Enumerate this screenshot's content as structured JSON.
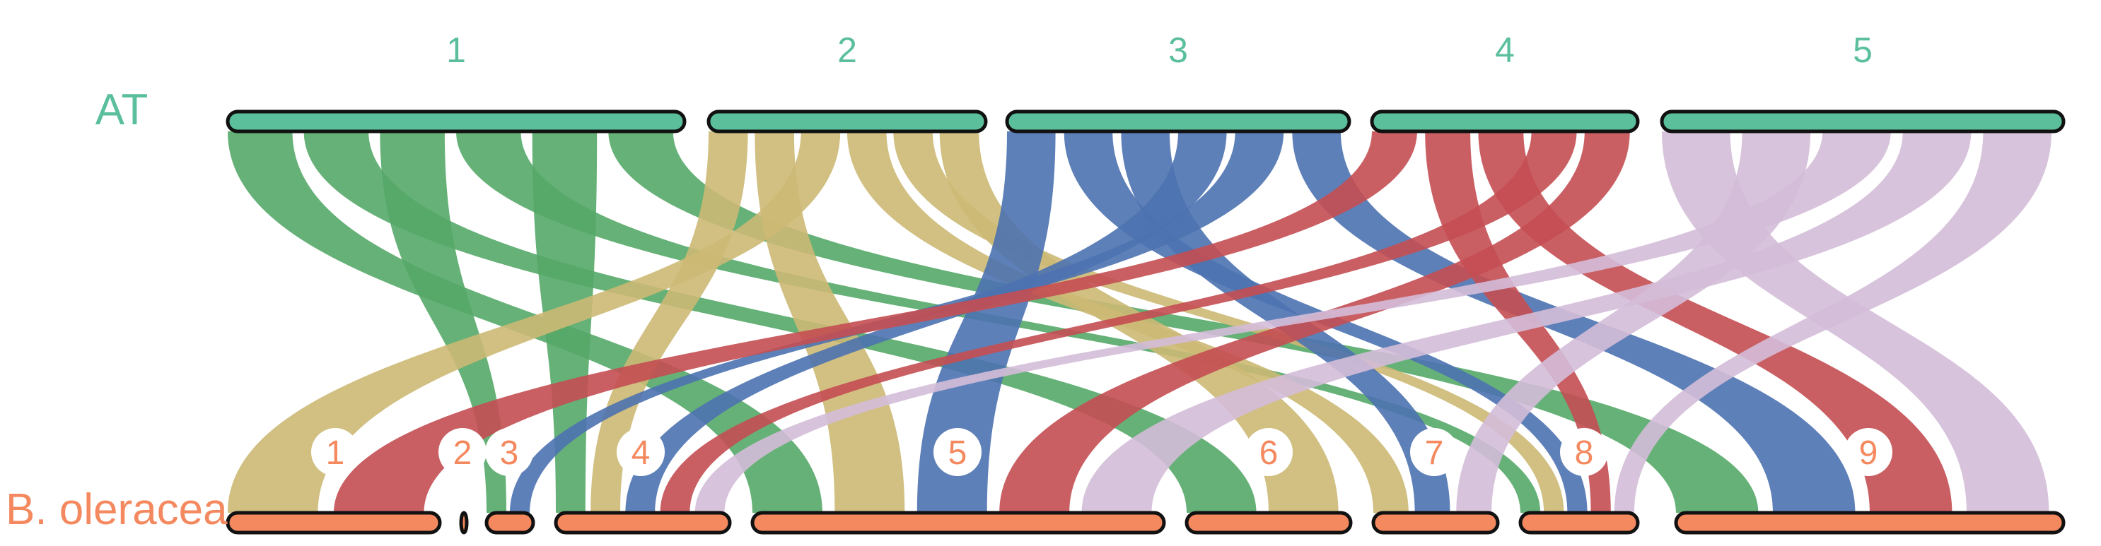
{
  "genomes": [
    {
      "name": "AT",
      "color": "#5bbf9c"
    },
    {
      "name": "B. oleracea",
      "color": "#f4895f"
    }
  ],
  "top_chromosomes": [
    {
      "label": "1",
      "fill": "#5bbf9c"
    },
    {
      "label": "2",
      "fill": "#5bbf9c"
    },
    {
      "label": "3",
      "fill": "#5bbf9c"
    },
    {
      "label": "4",
      "fill": "#5bbf9c"
    },
    {
      "label": "5",
      "fill": "#5bbf9c"
    }
  ],
  "bottom_chromosomes": [
    {
      "label": "1",
      "fill": "#f4895f"
    },
    {
      "label": "2",
      "fill": "#f4895f"
    },
    {
      "label": "3",
      "fill": "#f4895f"
    },
    {
      "label": "4",
      "fill": "#f4895f"
    },
    {
      "label": "5",
      "fill": "#f4895f"
    },
    {
      "label": "6",
      "fill": "#f4895f"
    },
    {
      "label": "7",
      "fill": "#f4895f"
    },
    {
      "label": "8",
      "fill": "#f4895f"
    },
    {
      "label": "9",
      "fill": "#f4895f"
    }
  ],
  "link_colors": {
    "1": "#55a868",
    "2": "#ccb974",
    "3": "#4c72b0",
    "4": "#c44e52",
    "5": "#d4bcd8"
  },
  "links": [
    {
      "from": "1",
      "to": "5",
      "color_key": "1"
    },
    {
      "from": "1",
      "to": "6",
      "color_key": "1"
    },
    {
      "from": "1",
      "to": "3",
      "color_key": "1"
    },
    {
      "from": "1",
      "to": "8",
      "color_key": "1"
    },
    {
      "from": "1",
      "to": "4",
      "color_key": "1"
    },
    {
      "from": "1",
      "to": "9",
      "color_key": "1"
    },
    {
      "from": "2",
      "to": "4",
      "color_key": "2"
    },
    {
      "from": "2",
      "to": "5",
      "color_key": "2"
    },
    {
      "from": "2",
      "to": "1",
      "color_key": "2"
    },
    {
      "from": "2",
      "to": "7",
      "color_key": "2"
    },
    {
      "from": "2",
      "to": "8",
      "color_key": "2"
    },
    {
      "from": "2",
      "to": "6",
      "color_key": "2"
    },
    {
      "from": "3",
      "to": "5",
      "color_key": "3"
    },
    {
      "from": "3",
      "to": "8",
      "color_key": "3"
    },
    {
      "from": "3",
      "to": "7",
      "color_key": "3"
    },
    {
      "from": "3",
      "to": "4",
      "color_key": "3"
    },
    {
      "from": "3",
      "to": "3",
      "color_key": "3"
    },
    {
      "from": "3",
      "to": "9",
      "color_key": "3"
    },
    {
      "from": "4",
      "to": "1",
      "color_key": "4"
    },
    {
      "from": "4",
      "to": "8",
      "color_key": "4"
    },
    {
      "from": "4",
      "to": "9",
      "color_key": "4"
    },
    {
      "from": "4",
      "to": "4",
      "color_key": "4"
    },
    {
      "from": "4",
      "to": "5",
      "color_key": "4"
    },
    {
      "from": "5",
      "to": "9",
      "color_key": "5"
    },
    {
      "from": "5",
      "to": "7",
      "color_key": "5"
    },
    {
      "from": "5",
      "to": "4",
      "color_key": "5"
    },
    {
      "from": "5",
      "to": "5",
      "color_key": "5"
    },
    {
      "from": "5",
      "to": "8",
      "color_key": "5"
    }
  ]
}
